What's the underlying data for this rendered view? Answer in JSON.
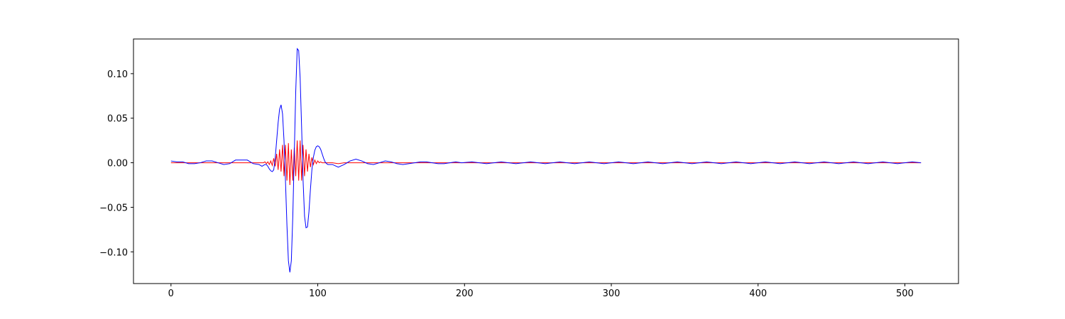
{
  "chart_data": {
    "type": "line",
    "x": [
      0,
      4,
      8,
      12,
      16,
      20,
      24,
      28,
      32,
      36,
      40,
      44,
      48,
      52,
      56,
      60,
      61,
      62,
      63,
      64,
      65,
      66,
      67,
      68,
      69,
      70,
      71,
      72,
      73,
      74,
      75,
      76,
      77,
      78,
      79,
      80,
      81,
      82,
      83,
      84,
      85,
      86,
      87,
      88,
      89,
      90,
      91,
      92,
      93,
      94,
      95,
      96,
      97,
      98,
      99,
      100,
      101,
      102,
      103,
      104,
      105,
      106,
      107,
      108,
      109,
      110,
      114,
      118,
      122,
      126,
      130,
      134,
      138,
      142,
      146,
      150,
      154,
      158,
      162,
      166,
      170,
      174,
      178,
      182,
      186,
      190,
      194,
      198,
      205,
      215,
      225,
      235,
      245,
      255,
      265,
      275,
      285,
      295,
      305,
      315,
      325,
      335,
      345,
      355,
      365,
      375,
      385,
      395,
      405,
      415,
      425,
      435,
      445,
      455,
      465,
      475,
      485,
      495,
      505,
      511
    ],
    "series": [
      {
        "color": "#ff0000",
        "values": [
          0,
          0,
          0,
          0,
          0,
          0,
          0,
          0,
          0,
          0,
          0,
          0,
          0,
          0,
          0,
          0,
          0,
          0,
          0,
          0.001,
          -0.001,
          0.001,
          -0.002,
          0.002,
          -0.003,
          0.005,
          -0.004,
          0.01,
          -0.008,
          0.015,
          -0.01,
          0.02,
          -0.015,
          0.02,
          -0.02,
          0.022,
          -0.025,
          0.015,
          -0.02,
          0.017,
          -0.015,
          0.025,
          -0.02,
          0.025,
          -0.02,
          0.02,
          -0.015,
          0.015,
          -0.01,
          0.01,
          -0.005,
          0.006,
          -0.002,
          0.003,
          -0.001,
          0.002,
          0,
          0.001,
          0,
          0,
          0,
          0,
          0,
          0,
          0,
          0,
          -0.001,
          0,
          0,
          0,
          0,
          0,
          0,
          0,
          0,
          0,
          0,
          0,
          0,
          0,
          0,
          0,
          0,
          0,
          0,
          0,
          0,
          0,
          0,
          0,
          0,
          0,
          0,
          0,
          0,
          0,
          0,
          0,
          0,
          0,
          0,
          0,
          0,
          0,
          0,
          0,
          0,
          0,
          0,
          0,
          0,
          0,
          0,
          0,
          0,
          0,
          0,
          0,
          0,
          0
        ]
      },
      {
        "color": "#0000ff",
        "values": [
          0.002,
          0.001,
          0.001,
          -0.001,
          -0.001,
          0,
          0.002,
          0.002,
          0,
          -0.002,
          -0.001,
          0.003,
          0.003,
          0.003,
          -0.001,
          -0.002,
          -0.003,
          -0.004,
          -0.003,
          -0.002,
          -0.002,
          -0.004,
          -0.007,
          -0.009,
          -0.01,
          -0.008,
          0.005,
          0.025,
          0.045,
          0.06,
          0.065,
          0.055,
          0.025,
          -0.02,
          -0.07,
          -0.11,
          -0.123,
          -0.11,
          -0.06,
          0.01,
          0.08,
          0.128,
          0.126,
          0.095,
          0.04,
          -0.02,
          -0.06,
          -0.073,
          -0.072,
          -0.055,
          -0.03,
          -0.008,
          0.006,
          0.014,
          0.018,
          0.019,
          0.018,
          0.015,
          0.01,
          0.005,
          0.001,
          -0.001,
          -0.002,
          -0.002,
          -0.002,
          -0.002,
          -0.005,
          -0.002,
          0.002,
          0.004,
          0.002,
          -0.001,
          -0.002,
          0,
          0.002,
          0.001,
          -0.001,
          -0.002,
          -0.001,
          0,
          0.001,
          0.001,
          0,
          -0.001,
          -0.001,
          0,
          0.001,
          0,
          0.001,
          -0.001,
          0.001,
          -0.001,
          0.001,
          -0.001,
          0.001,
          -0.001,
          0.001,
          -0.001,
          0.001,
          -0.001,
          0.001,
          -0.001,
          0.001,
          -0.001,
          0.001,
          -0.001,
          0.001,
          -0.001,
          0.001,
          -0.001,
          0.001,
          -0.001,
          0.001,
          -0.001,
          0.001,
          -0.001,
          0.001,
          -0.001,
          0.001,
          0
        ]
      }
    ],
    "xlim": [
      -25.55,
      536.55
    ],
    "ylim": [
      -0.1356,
      0.1389
    ],
    "xticks": [
      0,
      100,
      200,
      300,
      400,
      500
    ],
    "yticks": [
      {
        "value": -0.1,
        "label": "−0.10"
      },
      {
        "value": -0.05,
        "label": "−0.05"
      },
      {
        "value": 0,
        "label": "0.00"
      },
      {
        "value": 0.05,
        "label": "0.05"
      },
      {
        "value": 0.1,
        "label": "0.10"
      }
    ]
  }
}
